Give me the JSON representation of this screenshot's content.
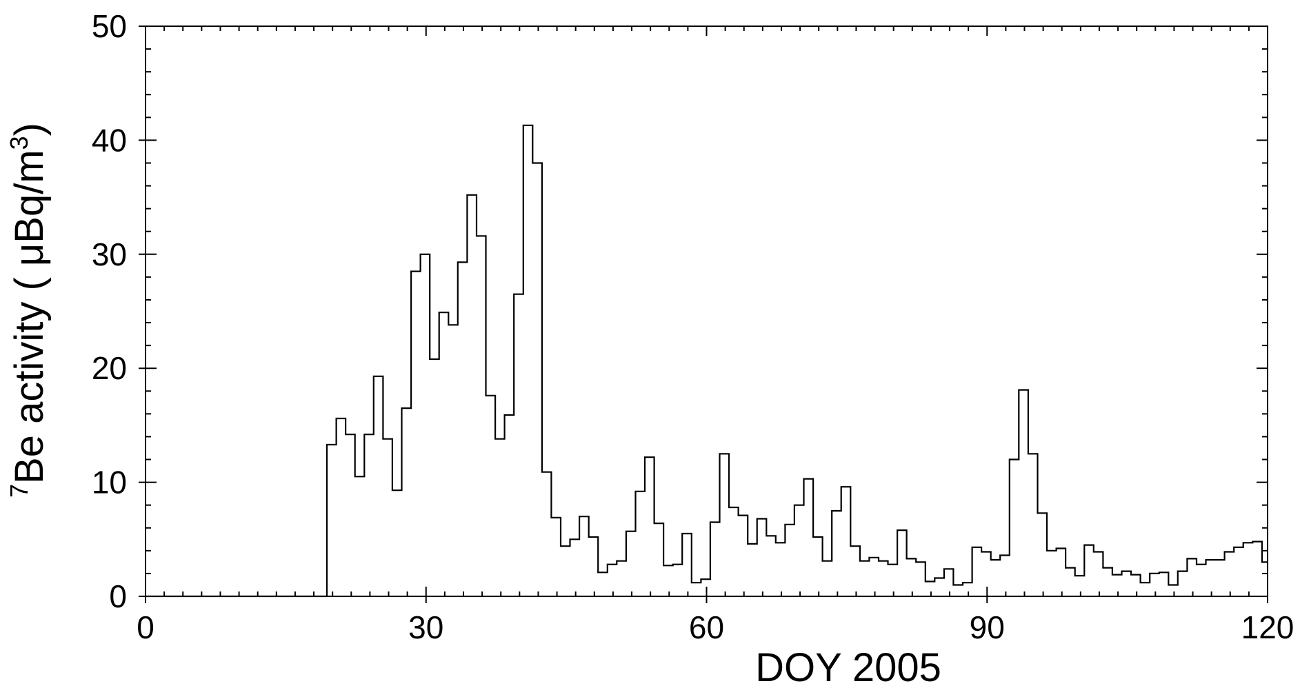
{
  "chart_data": {
    "type": "line",
    "subtype": "step-histogram",
    "title": "",
    "xlabel": "DOY 2005",
    "ylabel_super": "7",
    "ylabel_main": "Be activity ( μBq/m",
    "ylabel_unit_super": "3",
    "ylabel_close": ")",
    "xlim": [
      0,
      120
    ],
    "ylim": [
      0,
      50
    ],
    "x_ticks": [
      0,
      30,
      60,
      90,
      120
    ],
    "x_tick_labels": [
      "0",
      "30",
      "60",
      "90",
      "120"
    ],
    "y_ticks": [
      0,
      10,
      20,
      30,
      40,
      50
    ],
    "y_tick_labels": [
      "0",
      "10",
      "20",
      "30",
      "40",
      "50"
    ],
    "x_minor_step": 2,
    "y_minor_step": 2,
    "line_color": "#000000",
    "grid": false,
    "legend": "none",
    "series": [
      {
        "x": [
          0,
          19.4,
          20.4,
          21.4,
          22.4,
          23.4,
          24.4,
          25.4,
          26.4,
          27.4,
          28.4,
          29.4,
          30.4,
          31.4,
          32.4,
          33.4,
          34.4,
          35.4,
          36.4,
          37.4,
          38.4,
          39.4,
          40.4,
          41.4,
          42.4,
          43.4,
          44.4,
          45.4,
          46.4,
          47.4,
          48.4,
          49.4,
          50.4,
          51.4,
          52.4,
          53.4,
          54.4,
          55.4,
          56.4,
          57.4,
          58.4,
          59.4,
          60.4,
          61.4,
          62.4,
          63.4,
          64.4,
          65.4,
          66.4,
          67.4,
          68.4,
          69.4,
          70.4,
          71.4,
          72.4,
          73.4,
          74.4,
          75.4,
          76.4,
          77.4,
          78.4,
          79.4,
          80.4,
          81.4,
          82.4,
          83.4,
          84.4,
          85.4,
          86.4,
          87.4,
          88.4,
          89.4,
          90.4,
          91.4,
          92.4,
          93.4,
          94.4,
          95.4,
          96.4,
          97.4,
          98.4,
          99.4,
          100.4,
          101.4,
          102.4,
          103.4,
          104.4,
          105.4,
          106.4,
          107.4,
          108.4,
          109.4,
          110.4,
          111.4,
          112.4,
          113.4,
          114.4,
          115.4,
          116.4,
          117.4,
          118.4,
          119.4
        ],
        "y": [
          0,
          13.3,
          15.6,
          14.2,
          10.5,
          14.2,
          19.3,
          13.8,
          9.3,
          16.5,
          28.5,
          30.0,
          20.8,
          24.9,
          23.8,
          29.3,
          35.2,
          31.6,
          17.6,
          13.8,
          15.9,
          26.5,
          41.3,
          38.0,
          10.9,
          6.9,
          4.4,
          5.0,
          7.0,
          5.2,
          2.1,
          2.8,
          3.1,
          5.7,
          9.2,
          12.2,
          6.4,
          2.7,
          2.8,
          5.5,
          1.2,
          1.5,
          6.5,
          12.5,
          7.8,
          7.1,
          4.6,
          6.8,
          5.3,
          4.7,
          6.3,
          8.0,
          10.3,
          5.2,
          3.1,
          7.5,
          9.6,
          4.4,
          3.1,
          3.4,
          3.1,
          2.8,
          5.8,
          3.3,
          3.0,
          1.3,
          1.6,
          2.4,
          1.0,
          1.2,
          4.3,
          3.9,
          3.2,
          3.6,
          12.0,
          18.1,
          12.5,
          7.3,
          4.0,
          4.2,
          2.5,
          1.8,
          4.5,
          3.9,
          2.5,
          1.9,
          2.2,
          1.9,
          1.2,
          2.0,
          2.1,
          1.0,
          2.2,
          3.3,
          2.8,
          3.2,
          3.2,
          3.9,
          4.3,
          4.7,
          4.8,
          3.0
        ]
      }
    ]
  }
}
